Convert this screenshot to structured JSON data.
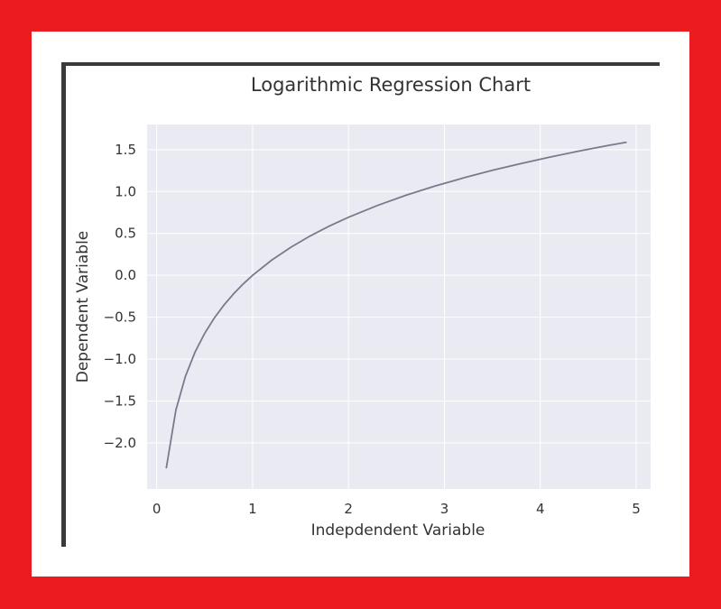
{
  "colors": {
    "frame": "#ea1c1f",
    "card": "#ffffff",
    "plot_background": "#eaeaf2",
    "grid": "#ffffff",
    "line": "#7a7a8c",
    "border": "#3a3a3a"
  },
  "chart_data": {
    "type": "line",
    "title": "Logarithmic Regression Chart",
    "xlabel": "Indepdendent Variable",
    "ylabel": "Dependent Variable",
    "xlim": [
      -0.1,
      5.15
    ],
    "ylim": [
      -2.55,
      1.8
    ],
    "grid": true,
    "xticks": [
      0,
      1,
      2,
      3,
      4,
      5
    ],
    "xtick_labels": [
      "0",
      "1",
      "2",
      "3",
      "4",
      "5"
    ],
    "yticks": [
      1.5,
      1.0,
      0.5,
      0.0,
      -0.5,
      -1.0,
      -1.5,
      -2.0
    ],
    "ytick_labels": [
      "1.5",
      "1.0",
      "0.5",
      "0.0",
      "−0.5",
      "−1.0",
      "−1.5",
      "−2.0"
    ],
    "series": [
      {
        "function": "ln(x)",
        "x": [
          0.1,
          0.2,
          0.3,
          0.4,
          0.5,
          0.6,
          0.7,
          0.8,
          0.9,
          1.0,
          1.2,
          1.4,
          1.6,
          1.8,
          2.0,
          2.3,
          2.6,
          2.9,
          3.2,
          3.5,
          3.8,
          4.1,
          4.4,
          4.7,
          4.9
        ],
        "y": [
          -2.303,
          -1.609,
          -1.204,
          -0.916,
          -0.693,
          -0.511,
          -0.357,
          -0.223,
          -0.105,
          0.0,
          0.182,
          0.336,
          0.47,
          0.588,
          0.693,
          0.833,
          0.956,
          1.065,
          1.163,
          1.253,
          1.335,
          1.411,
          1.482,
          1.548,
          1.589
        ]
      }
    ]
  }
}
